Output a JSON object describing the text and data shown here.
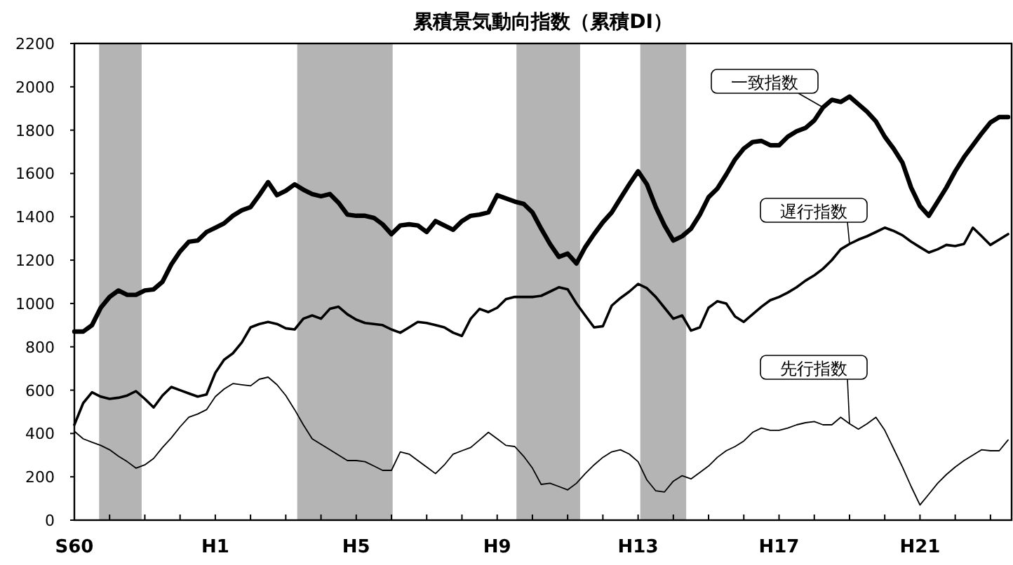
{
  "chart_data": {
    "type": "line",
    "title": "累積景気動向指数（累積DI）",
    "categories": [
      "S60",
      null,
      null,
      null,
      null,
      null,
      null,
      null,
      null,
      null,
      null,
      null,
      null,
      null,
      null,
      null,
      "H1",
      null,
      null,
      null,
      null,
      null,
      null,
      null,
      null,
      null,
      null,
      null,
      null,
      null,
      null,
      null,
      "H5",
      null,
      null,
      null,
      null,
      null,
      null,
      null,
      null,
      null,
      null,
      null,
      null,
      null,
      null,
      null,
      "H9",
      null,
      null,
      null,
      null,
      null,
      null,
      null,
      null,
      null,
      null,
      null,
      null,
      null,
      null,
      null,
      "H13",
      null,
      null,
      null,
      null,
      null,
      null,
      null,
      null,
      null,
      null,
      null,
      null,
      null,
      null,
      null,
      "H17",
      null,
      null,
      null,
      null,
      null,
      null,
      null,
      null,
      null,
      null,
      null,
      null,
      null,
      null,
      null,
      "H21",
      null,
      null,
      null,
      null,
      null,
      null,
      null,
      null,
      null,
      null
    ],
    "ylim": [
      0,
      2200
    ],
    "yticks": [
      0,
      200,
      400,
      600,
      800,
      1000,
      1200,
      1400,
      1600,
      1800,
      2000,
      2200
    ],
    "grid": false,
    "legend": false,
    "marker": "none",
    "line_style": "solid",
    "series": [
      {
        "name": "一致指数",
        "color": "#000000",
        "values": [
          870,
          870,
          900,
          980,
          1030,
          1060,
          1040,
          1040,
          1060,
          1065,
          1100,
          1180,
          1240,
          1285,
          1290,
          1330,
          1350,
          1370,
          1405,
          1430,
          1445,
          1500,
          1560,
          1500,
          1520,
          1550,
          1525,
          1505,
          1495,
          1505,
          1465,
          1410,
          1405,
          1405,
          1395,
          1365,
          1320,
          1360,
          1365,
          1360,
          1330,
          1380,
          1360,
          1340,
          1380,
          1405,
          1410,
          1420,
          1500,
          1485,
          1470,
          1460,
          1420,
          1345,
          1275,
          1215,
          1230,
          1185,
          1260,
          1320,
          1375,
          1420,
          1485,
          1550,
          1610,
          1550,
          1445,
          1360,
          1290,
          1310,
          1345,
          1410,
          1490,
          1530,
          1595,
          1665,
          1715,
          1745,
          1750,
          1730,
          1730,
          1770,
          1795,
          1810,
          1845,
          1905,
          1940,
          1930,
          1955,
          1920,
          1885,
          1840,
          1770,
          1715,
          1650,
          1535,
          1450,
          1405,
          1470,
          1535,
          1610,
          1675,
          1730,
          1785,
          1835,
          1860,
          1860
        ]
      },
      {
        "name": "遅行指数",
        "color": "#000000",
        "values": [
          440,
          540,
          590,
          570,
          560,
          565,
          575,
          595,
          560,
          520,
          575,
          615,
          600,
          585,
          570,
          580,
          680,
          740,
          770,
          820,
          890,
          905,
          915,
          905,
          885,
          880,
          930,
          945,
          930,
          975,
          985,
          950,
          925,
          910,
          905,
          900,
          880,
          865,
          890,
          915,
          910,
          900,
          890,
          865,
          850,
          930,
          975,
          960,
          980,
          1020,
          1030,
          1030,
          1030,
          1035,
          1055,
          1075,
          1065,
          1000,
          945,
          890,
          895,
          990,
          1025,
          1055,
          1090,
          1070,
          1030,
          980,
          930,
          945,
          875,
          890,
          980,
          1010,
          1000,
          940,
          915,
          950,
          985,
          1015,
          1030,
          1050,
          1075,
          1105,
          1130,
          1160,
          1200,
          1250,
          1275,
          1295,
          1310,
          1330,
          1350,
          1335,
          1315,
          1285,
          1260,
          1235,
          1250,
          1270,
          1265,
          1275,
          1350,
          1310,
          1270,
          1295,
          1320
        ]
      },
      {
        "name": "先行指数",
        "color": "#000000",
        "values": [
          410,
          375,
          360,
          345,
          325,
          295,
          270,
          240,
          255,
          285,
          335,
          380,
          430,
          475,
          490,
          510,
          570,
          605,
          630,
          625,
          620,
          650,
          660,
          625,
          575,
          510,
          440,
          375,
          350,
          325,
          300,
          275,
          275,
          270,
          250,
          230,
          230,
          315,
          305,
          275,
          245,
          215,
          255,
          305,
          320,
          335,
          370,
          405,
          375,
          345,
          340,
          295,
          240,
          165,
          170,
          155,
          140,
          170,
          215,
          255,
          290,
          315,
          325,
          305,
          270,
          185,
          135,
          130,
          180,
          205,
          190,
          220,
          250,
          290,
          320,
          340,
          365,
          405,
          425,
          415,
          415,
          425,
          440,
          450,
          455,
          440,
          440,
          475,
          445,
          420,
          445,
          475,
          415,
          330,
          245,
          155,
          70,
          120,
          170,
          210,
          245,
          275,
          300,
          325,
          320,
          320,
          370
        ]
      }
    ]
  }
}
